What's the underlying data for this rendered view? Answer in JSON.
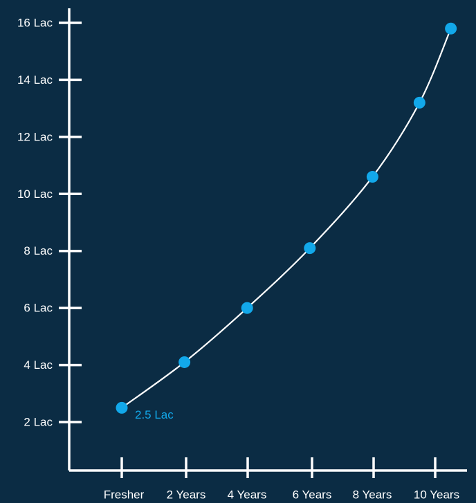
{
  "chart_data": {
    "type": "line",
    "title": "",
    "xlabel": "",
    "ylabel": "",
    "categories": [
      "Fresher",
      "2 Years",
      "4 Years",
      "6 Years",
      "8 Years",
      "10 Years"
    ],
    "y_ticks": [
      "2 Lac",
      "4 Lac",
      "6 Lac",
      "8 Lac",
      "10 Lac",
      "12 Lac",
      "14 Lac",
      "16 Lac"
    ],
    "ylim": [
      2,
      16
    ],
    "grid": false,
    "series": [
      {
        "x": [
          0,
          2,
          4,
          6,
          8,
          9.5,
          10.5
        ],
        "y": [
          2.5,
          4.1,
          6.0,
          8.1,
          10.6,
          13.2,
          15.8
        ]
      }
    ],
    "data_labels": [
      {
        "x": 0,
        "y": 2.5,
        "text": "2.5 Lac"
      }
    ],
    "colors": {
      "background": "#0b2c44",
      "axis": "#ffffff",
      "line": "#ffffff",
      "marker": "#12a8ea",
      "data_label": "#12a8ea"
    }
  }
}
